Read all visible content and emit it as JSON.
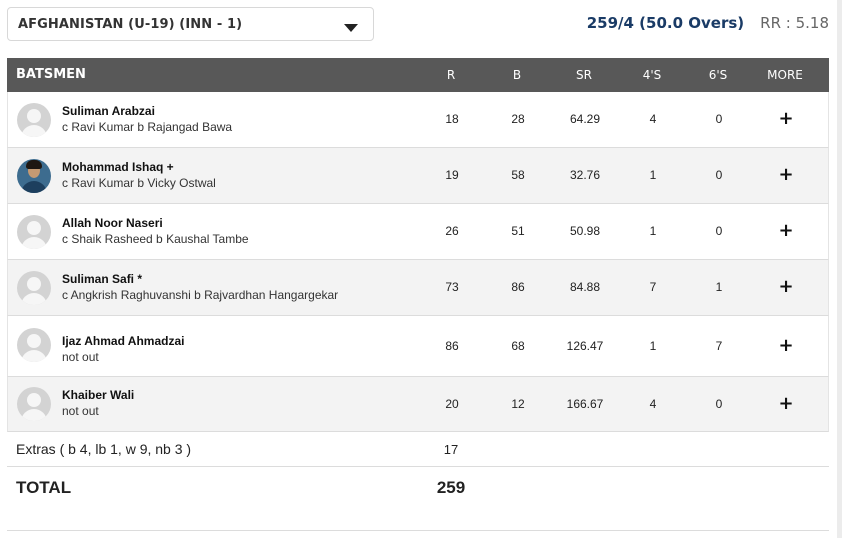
{
  "innings_selector": {
    "label": "AFGHANISTAN (U-19) (INN - 1)"
  },
  "score": {
    "main": "259/4 (50.0 Overs)",
    "run_rate": "RR : 5.18",
    "accent_color": "#1a3b66"
  },
  "table": {
    "headers": {
      "batsmen": "BATSMEN",
      "r": "R",
      "b": "B",
      "sr": "SR",
      "fours": "4'S",
      "sixes": "6'S",
      "more": "MORE"
    },
    "rows": [
      {
        "name": "Suliman Arabzai",
        "dismissal": "c Ravi Kumar b Rajangad Bawa",
        "r": "18",
        "b": "28",
        "sr": "64.29",
        "fours": "4",
        "sixes": "0",
        "more": "+",
        "avatar": "placeholder-avatar-icon"
      },
      {
        "name": "Mohammad Ishaq +",
        "dismissal": "c Ravi Kumar b Vicky Ostwal",
        "r": "19",
        "b": "58",
        "sr": "32.76",
        "fours": "1",
        "sixes": "0",
        "more": "+",
        "avatar": "player-photo"
      },
      {
        "name": "Allah Noor Naseri",
        "dismissal": "c Shaik Rasheed b Kaushal Tambe",
        "r": "26",
        "b": "51",
        "sr": "50.98",
        "fours": "1",
        "sixes": "0",
        "more": "+",
        "avatar": "placeholder-avatar-icon"
      },
      {
        "name": "Suliman Safi *",
        "dismissal": "c Angkrish Raghuvanshi b Rajvardhan Hangargekar",
        "r": "73",
        "b": "86",
        "sr": "84.88",
        "fours": "7",
        "sixes": "1",
        "more": "+",
        "avatar": "placeholder-avatar-icon"
      },
      {
        "name": "Ijaz Ahmad Ahmadzai",
        "dismissal": "not out",
        "r": "86",
        "b": "68",
        "sr": "126.47",
        "fours": "1",
        "sixes": "7",
        "more": "+",
        "avatar": "placeholder-avatar-icon"
      },
      {
        "name": "Khaiber Wali",
        "dismissal": "not out",
        "r": "20",
        "b": "12",
        "sr": "166.67",
        "fours": "4",
        "sixes": "0",
        "more": "+",
        "avatar": "placeholder-avatar-icon"
      }
    ]
  },
  "extras": {
    "label": "Extras ( b 4, lb 1, w 9, nb 3 )",
    "value": "17"
  },
  "total": {
    "label": "TOTAL",
    "value": "259"
  }
}
